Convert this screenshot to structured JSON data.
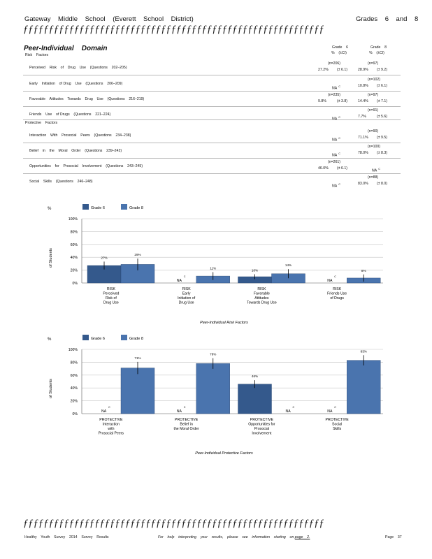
{
  "header": {
    "school": "Gateway    Middle    School    (Everett    School    District)",
    "grades": "Grades    6    and    8"
  },
  "rule_text": "ƒƒƒƒƒƒƒƒƒƒƒƒƒƒƒƒƒƒƒƒƒƒƒƒƒƒƒƒƒƒƒƒƒƒƒƒƒƒƒƒƒƒƒƒƒƒƒƒƒƒƒƒƒƒƒƒƒƒƒƒƒƒƒƒƒƒƒƒƒƒƒ",
  "domain_title": "Peer-Individual    Domain",
  "risk_label": "Risk    Factors",
  "protective_label": "Protective    Factors",
  "col_headers": {
    "g6": "Grade    6",
    "g8": "Grade    8",
    "ci": "%    (±CI)"
  },
  "rows": [
    {
      "label": "Perceived    Risk    of    Drug    Use    (Questions    202–205)",
      "g6": {
        "n": "(n=206)",
        "pct": "27.2%",
        "ci": "(± 6.1)"
      },
      "g8": {
        "n": "(n=97)",
        "pct": "28.9%",
        "ci": "(± 9.2)"
      }
    },
    {
      "label": "Early    Initiation    of Drug    Use    (Questions    206–209)",
      "g6": {
        "na": "NA"
      },
      "g8": {
        "n": "(n=102)",
        "pct": "10.8%",
        "ci": "(± 6.1)"
      }
    },
    {
      "label": "Favorable    Attitudes    Towards    Drug    Use    (Questions    216–219)",
      "g6": {
        "n": "(n=235)",
        "pct": "9.8%",
        "ci": "(± 3.8)"
      },
      "g8": {
        "n": "(n=97)",
        "pct": "14.4%",
        "ci": "(± 7.1)"
      }
    },
    {
      "label": "Friends    Use    of Drugs    (Questions    221–224)",
      "g6": {
        "na": "NA"
      },
      "g8": {
        "n": "(n=91)",
        "pct": "7.7%",
        "ci": "(± 5.6)"
      }
    },
    {
      "label": "Interaction    With    Prosocial    Peers    (Questions    234–238)",
      "g6": {
        "na": "NA"
      },
      "g8": {
        "n": "(n=90)",
        "pct": "71.1%",
        "ci": "(± 9.5)"
      }
    },
    {
      "label": "Belief    in    the    Moral    Order    (Questions    239–242)",
      "g6": {
        "na": "NA"
      },
      "g8": {
        "n": "(n=100)",
        "pct": "78.0%",
        "ci": "(± 8.3)"
      }
    },
    {
      "label": "Opportunities    for    Prosocial    Involvement    (Questions    243–245)",
      "g6": {
        "n": "(n=261)",
        "pct": "46.0%",
        "ci": "(± 6.1)"
      },
      "g8": {
        "na": "NA"
      }
    },
    {
      "label": "Social    Skills    (Questions    246–248)",
      "g6": {
        "na": "NA"
      },
      "g8": {
        "n": "(n=88)",
        "pct": "83.0%",
        "ci": "(± 8.0)"
      }
    }
  ],
  "na_sup": "C",
  "chart_data": [
    {
      "type": "bar",
      "legend": [
        "Grade    6",
        "Grade    8"
      ],
      "corner_mark": "%",
      "ylabel": "of Students",
      "xlabel": "Peer-Individual      Risk    Factors",
      "ylim": [
        0,
        100
      ],
      "yticks": [
        "0%",
        "20%",
        "40%",
        "60%",
        "80%",
        "100%"
      ],
      "categories": [
        [
          "RISK",
          "Perceived",
          "Risk    of",
          "Drug    Use"
        ],
        [
          "RISK",
          "Early",
          "Initiation    of",
          "Drug    Use"
        ],
        [
          "RISK",
          "Favorable",
          "Attitudes",
          "Towards    Drug    Use"
        ],
        [
          "RISK",
          "Friends    Use",
          "of Drugs"
        ]
      ],
      "series": [
        {
          "name": "Grade    6",
          "color": "#34598c",
          "values": [
            27.2,
            null,
            9.8,
            null
          ],
          "ci": [
            6.1,
            null,
            3.8,
            null
          ],
          "labels": [
            "27%",
            "NA",
            "10%",
            "NA"
          ]
        },
        {
          "name": "Grade    8",
          "color": "#4a74ae",
          "values": [
            28.9,
            10.8,
            14.4,
            7.7
          ],
          "ci": [
            9.2,
            6.1,
            7.1,
            5.6
          ],
          "labels": [
            "29%",
            "11%",
            "14%",
            "8%"
          ]
        }
      ]
    },
    {
      "type": "bar",
      "legend": [
        "Grade    6",
        "Grade    8"
      ],
      "corner_mark": "%",
      "ylabel": "of Students",
      "xlabel": "Peer-Individual      Protective      Factors",
      "ylim": [
        0,
        100
      ],
      "yticks": [
        "0%",
        "20%",
        "40%",
        "60%",
        "80%",
        "100%"
      ],
      "categories": [
        [
          "PROTECTIVE",
          "Interaction",
          "with",
          "Prosocial    Peers"
        ],
        [
          "PROTECTIVE",
          "Belief    in",
          "the    Moral    Order"
        ],
        [
          "PROTECTIVE",
          "Opportunities        for",
          "Prosocial",
          "Involvement"
        ],
        [
          "PROTECTIVE",
          "Social",
          "Skills"
        ]
      ],
      "series": [
        {
          "name": "Grade    6",
          "color": "#34598c",
          "values": [
            null,
            null,
            46.0,
            null
          ],
          "ci": [
            null,
            null,
            6.1,
            null
          ],
          "labels": [
            "NA",
            "NA",
            "46%",
            "NA"
          ]
        },
        {
          "name": "Grade    8",
          "color": "#4a74ae",
          "values": [
            71.1,
            78.0,
            null,
            83.0
          ],
          "ci": [
            9.5,
            8.3,
            null,
            8.0
          ],
          "labels": [
            "71%",
            "78%",
            "NA",
            "83%"
          ]
        }
      ]
    }
  ],
  "footer": {
    "left": "Healthy    Youth    Survey    2014    Survey    Results",
    "middle": "For    help    interpreting    your    results,    please    see    information    starting    on",
    "link": "page    2.",
    "page": "Page    37"
  }
}
